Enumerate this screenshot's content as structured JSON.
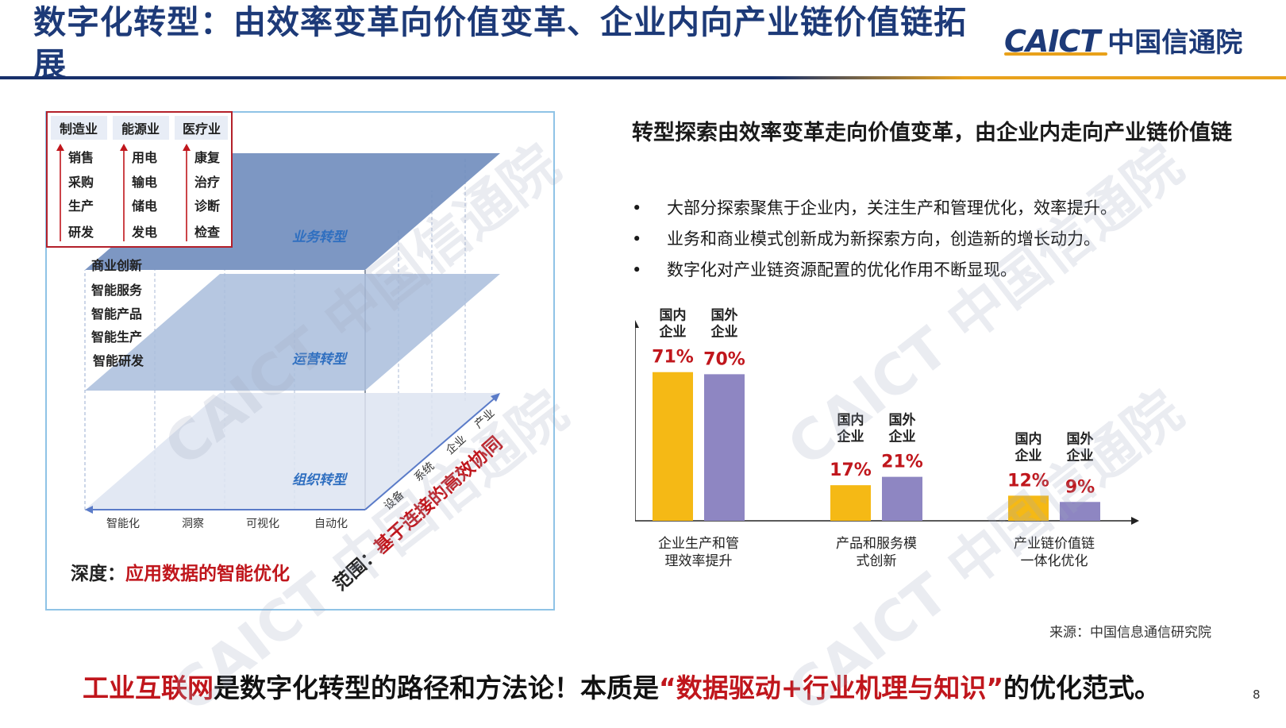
{
  "header": {
    "title": "数字化转型：由效率变革向价值变革、企业内向产业链价值链拓展",
    "logo_en": "CAICT",
    "logo_cn": "中国信通院"
  },
  "diagram": {
    "industries": [
      {
        "name": "制造业",
        "items": [
          "销售",
          "采购",
          "生产",
          "研发"
        ]
      },
      {
        "name": "能源业",
        "items": [
          "用电",
          "输电",
          "储电",
          "发电"
        ]
      },
      {
        "name": "医疗业",
        "items": [
          "康复",
          "治疗",
          "诊断",
          "检查"
        ]
      }
    ],
    "layers": [
      "业务转型",
      "运营转型",
      "组织转型"
    ],
    "left_labels": [
      "商业创新",
      "智能服务",
      "智能产品",
      "智能生产",
      "智能研发"
    ],
    "bottom_axis": [
      "智能化",
      "洞察",
      "可视化",
      "自动化"
    ],
    "diag_axis": [
      "设备",
      "系统",
      "企业",
      "产业"
    ],
    "depth_prefix": "深度：",
    "depth_text": "应用数据的智能优化",
    "scope_prefix": "范围：",
    "scope_text": "基于连接的高效协同"
  },
  "right": {
    "heading": "转型探索由效率变革走向价值变革，由企业内走向产业链价值链",
    "bullets": [
      "大部分探索聚焦于企业内，关注生产和管理优化，效率提升。",
      "业务和商业模式创新成为新探索方向，创造新的增长动力。",
      "数字化对产业链资源配置的优化作用不断显现。"
    ],
    "bullet_symbol": "•"
  },
  "chart_data": {
    "type": "bar",
    "categories": [
      "企业生产和管理效率提升",
      "产品和服务模式创新",
      "产业链价值链一体化优化"
    ],
    "category_lines": [
      [
        "企业生产和管",
        "理效率提升"
      ],
      [
        "产品和服务模",
        "式创新"
      ],
      [
        "产业链价值链",
        "一体化优化"
      ]
    ],
    "series": [
      {
        "name": "国内企业",
        "name_lines": [
          "国内",
          "企业"
        ],
        "values": [
          71,
          17,
          12
        ],
        "labels": [
          "71%",
          "17%",
          "12%"
        ]
      },
      {
        "name": "国外企业",
        "name_lines": [
          "国外",
          "企业"
        ],
        "values": [
          70,
          21,
          9
        ],
        "labels": [
          "70%",
          "21%",
          "9%"
        ]
      }
    ],
    "colors": [
      "#f5b915",
      "#8e86c2"
    ],
    "label_color": "#c0161c",
    "ylim": [
      0,
      80
    ]
  },
  "source": "来源：中国信息通信研究院",
  "footer": {
    "part1": "工业互联网",
    "part2": "是数字化转型的路径和方法论！本质是",
    "part3": "“数据驱动+行业机理与知识”",
    "part4": "的优化范式。"
  },
  "page_number": "8",
  "watermark": "CAICT 中国信通院",
  "colors": {
    "brand_blue": "#1d3a78",
    "accent_gold": "#e9a21c",
    "accent_red": "#c0161c"
  }
}
